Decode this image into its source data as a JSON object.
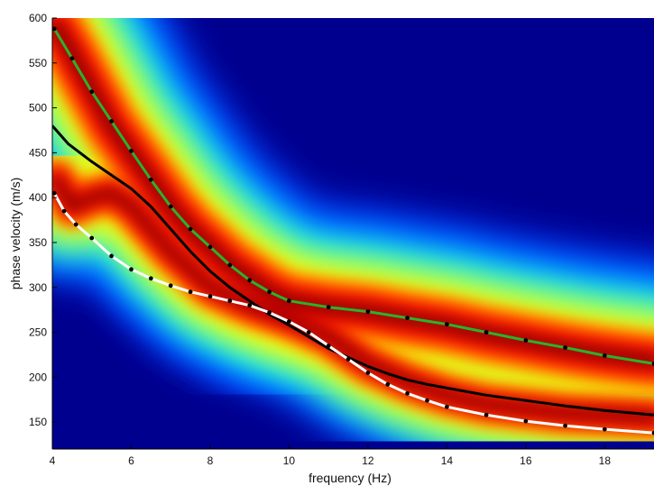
{
  "chart_data": {
    "type": "heatmap",
    "title": "",
    "xlabel": "frequency (Hz)",
    "ylabel": "phase velocity (m/s)",
    "xlim": [
      4,
      19.25
    ],
    "ylim": [
      120,
      600
    ],
    "x_ticks": [
      4,
      6,
      8,
      10,
      12,
      14,
      16,
      18
    ],
    "y_ticks": [
      150,
      200,
      250,
      300,
      350,
      400,
      450,
      500,
      550,
      600
    ],
    "colormap": [
      "#00008f",
      "#0040ff",
      "#00e0ff",
      "#80ff80",
      "#ffff00",
      "#ff8000",
      "#ff0000",
      "#800000"
    ],
    "grid": false,
    "legend": "none",
    "energy_ridges": [
      {
        "band": [
          [
            4.1,
            590
          ],
          [
            4.5,
            560
          ],
          [
            5,
            520
          ],
          [
            5.5,
            480
          ],
          [
            6,
            450
          ],
          [
            6.5,
            420
          ],
          [
            7,
            390
          ],
          [
            7.5,
            365
          ],
          [
            8,
            345
          ],
          [
            8.5,
            325
          ],
          [
            9,
            310
          ],
          [
            9.5,
            295
          ],
          [
            10,
            285
          ],
          [
            11,
            278
          ],
          [
            12,
            273
          ],
          [
            13,
            265
          ],
          [
            14,
            258
          ],
          [
            15,
            248
          ],
          [
            16,
            240
          ],
          [
            17,
            232
          ],
          [
            18,
            225
          ],
          [
            19.25,
            218
          ]
        ],
        "width": 60
      },
      {
        "band": [
          [
            4.1,
            420
          ],
          [
            4.5,
            390
          ],
          [
            5,
            400
          ],
          [
            5.5,
            405
          ],
          [
            6,
            390
          ],
          [
            7,
            340
          ],
          [
            8,
            300
          ],
          [
            9,
            280
          ],
          [
            10,
            265
          ],
          [
            11,
            245
          ],
          [
            12,
            215
          ],
          [
            13,
            195
          ],
          [
            14,
            180
          ],
          [
            15,
            170
          ],
          [
            16,
            165
          ],
          [
            17,
            160
          ],
          [
            18,
            158
          ],
          [
            19.25,
            155
          ]
        ],
        "width": 45
      }
    ],
    "series": [
      {
        "color": "#000000",
        "style": "solid",
        "markers": false,
        "x": [
          4.0,
          4.4,
          5.0,
          5.5,
          6.0,
          6.5,
          7.0,
          7.5,
          8.0,
          8.5,
          9.0,
          9.5,
          10.0,
          10.5,
          11.0,
          11.5,
          12.0,
          12.5,
          13.0,
          13.5,
          14.0,
          15.0,
          16.0,
          17.0,
          18.0,
          19.25
        ],
        "y": [
          480,
          460,
          440,
          425,
          410,
          390,
          365,
          340,
          318,
          300,
          285,
          270,
          258,
          245,
          232,
          222,
          212,
          204,
          197,
          192,
          188,
          180,
          174,
          168,
          163,
          158
        ]
      },
      {
        "color": "#2ab22a",
        "style": "dashed",
        "markers": true,
        "x": [
          4.05,
          4.5,
          5.0,
          5.5,
          6.0,
          6.5,
          7.0,
          7.5,
          8.0,
          8.5,
          9.0,
          9.5,
          10.0,
          11.0,
          12.0,
          13.0,
          14.0,
          15.0,
          16.0,
          17.0,
          18.0,
          19.25
        ],
        "y": [
          588,
          555,
          518,
          485,
          452,
          420,
          390,
          365,
          345,
          325,
          308,
          295,
          285,
          278,
          273,
          266,
          259,
          250,
          241,
          233,
          224,
          215
        ]
      },
      {
        "color": "#ffffff",
        "style": "dashed",
        "markers": true,
        "x": [
          4.05,
          4.3,
          4.6,
          5.0,
          5.5,
          6.0,
          6.5,
          7.0,
          7.5,
          8.0,
          8.5,
          9.0,
          9.5,
          10.0,
          10.5,
          11.0,
          11.5,
          12.0,
          12.5,
          13.0,
          13.5,
          14.0,
          15.0,
          16.0,
          17.0,
          18.0,
          19.25
        ],
        "y": [
          405,
          385,
          370,
          355,
          335,
          320,
          310,
          302,
          295,
          290,
          285,
          280,
          272,
          262,
          250,
          235,
          220,
          205,
          192,
          182,
          174,
          167,
          158,
          151,
          146,
          142,
          138
        ]
      }
    ]
  }
}
